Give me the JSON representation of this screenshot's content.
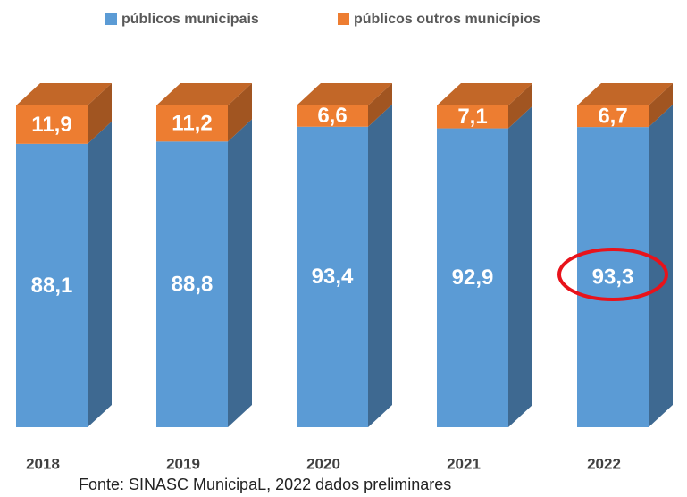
{
  "chart_data": {
    "type": "bar",
    "stacked": true,
    "categories": [
      "2018",
      "2019",
      "2020",
      "2021",
      "2022"
    ],
    "series": [
      {
        "name": "públicos municipais",
        "color": "#5b9bd5",
        "values": [
          88.1,
          88.8,
          93.4,
          92.9,
          93.3
        ],
        "value_labels": [
          "88,1",
          "88,8",
          "93,4",
          "92,9",
          "93,3"
        ]
      },
      {
        "name": "públicos outros municípios",
        "color": "#ed7d31",
        "values": [
          11.9,
          11.2,
          6.6,
          7.1,
          6.7
        ],
        "value_labels": [
          "11,9",
          "11,2",
          "6,6",
          "7,1",
          "6,7"
        ]
      }
    ],
    "ylim": [
      0,
      100
    ],
    "legend": "top",
    "source": "Fonte: SINASC MunicipaL, 2022 dados preliminares"
  }
}
